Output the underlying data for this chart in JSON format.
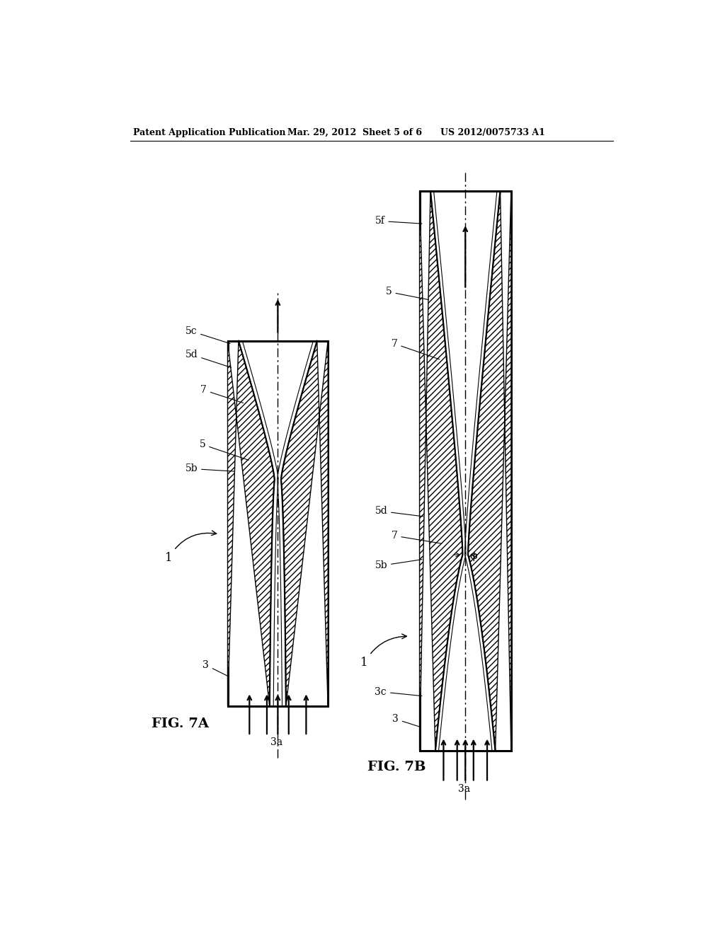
{
  "bg_color": "#ffffff",
  "header_left": "Patent Application Publication",
  "header_mid": "Mar. 29, 2012  Sheet 5 of 6",
  "header_right": "US 2012/0075733 A1",
  "fig7a_label": "FIG. 7A",
  "fig7b_label": "FIG. 7B",
  "hatch_pattern": "////",
  "line_color": "#000000",
  "lw_thick": 2.2,
  "lw_mid": 1.6,
  "lw_thin": 1.0,
  "header_fontsize": 9,
  "label_fontsize": 10,
  "figlabel_fontsize": 14
}
